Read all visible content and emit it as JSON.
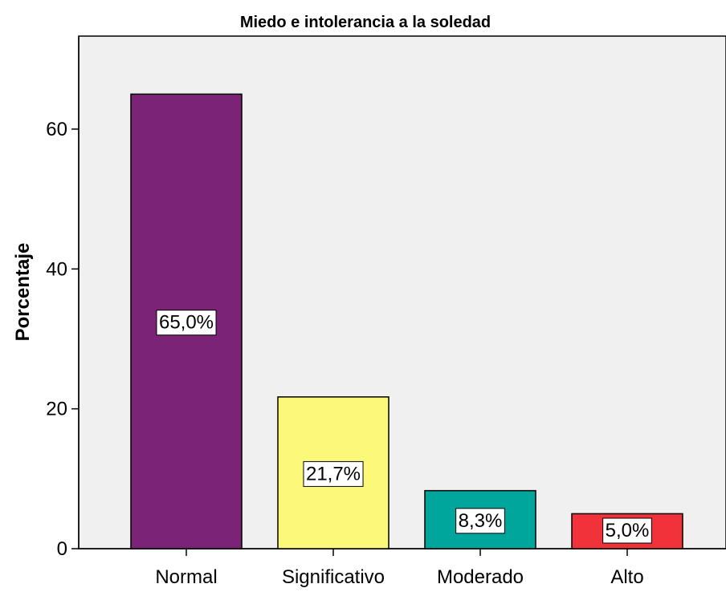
{
  "chart_data": {
    "type": "bar",
    "title": "Miedo e intolerancia a la soledad",
    "xlabel": "",
    "ylabel": "Porcentaje",
    "categories": [
      "Normal",
      "Significativo",
      "Moderado",
      "Alto"
    ],
    "values": [
      65.0,
      21.7,
      8.3,
      5.0
    ],
    "data_labels": [
      "65,0%",
      "21,7%",
      "8,3%",
      "5,0%"
    ],
    "colors": [
      "#7b2477",
      "#fcf87a",
      "#00a59c",
      "#f0333a"
    ],
    "yticks": [
      0,
      20,
      40,
      60
    ],
    "ytick_labels": [
      "0",
      "20",
      "40",
      "60"
    ],
    "ylim": [
      0,
      73.3
    ],
    "grid": false,
    "legend": "none",
    "plot_background": "#f0f0f0"
  }
}
